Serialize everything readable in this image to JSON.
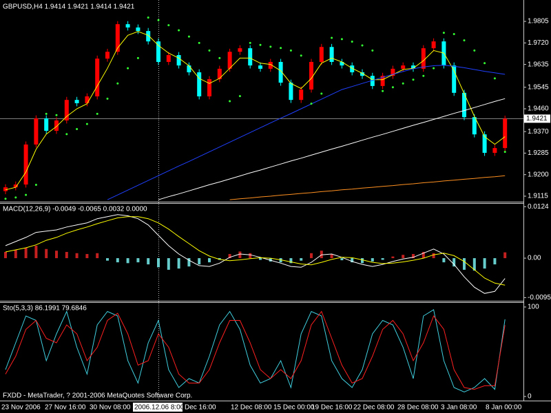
{
  "chart_data": [
    {
      "type": "candlestick",
      "title": "GBPUSD,H4  1.9414 1.9421 1.9414 1.9421",
      "ylim": [
        1.9096,
        1.9884
      ],
      "yticks": [
        1.9805,
        {
          "value": 1.972,
          "label": "1.9720"
        },
        1.9635,
        1.9545,
        {
          "value": 1.946,
          "label": "1.9460"
        },
        {
          "value": 1.937,
          "label": "1.9370"
        },
        1.9285,
        {
          "value": 1.92,
          "label": "1.9200"
        },
        1.9115
      ],
      "up_color": "#ff0000",
      "down_color": "#00ffff",
      "price_line": {
        "value": 1.9421,
        "label": "1.9421"
      },
      "open": [
        1.9135,
        1.915,
        1.9161,
        1.9319,
        1.9422,
        1.9373,
        1.9414,
        1.9495,
        1.9482,
        1.9509,
        1.9658,
        1.9685,
        1.9794,
        1.9781,
        1.9767,
        1.9726,
        1.9645,
        1.9672,
        1.9631,
        1.9604,
        1.9509,
        1.9577,
        1.9618,
        1.9685,
        1.9699,
        1.9631,
        1.9618,
        1.9645,
        1.9563,
        1.9495,
        1.9536,
        1.9645,
        1.9704,
        1.9645,
        1.9631,
        1.9604,
        1.959,
        1.955,
        1.959,
        1.9618,
        1.9631,
        1.9618,
        1.9699,
        1.9726,
        1.9631,
        1.9523,
        1.9427,
        1.9359,
        1.9286,
        1.9305
      ],
      "high": [
        1.9162,
        1.9173,
        1.9331,
        1.9434,
        1.9434,
        1.9426,
        1.9507,
        1.9507,
        1.9521,
        1.967,
        1.9697,
        1.9806,
        1.9806,
        1.9793,
        1.9779,
        1.9738,
        1.9684,
        1.9684,
        1.9643,
        1.9616,
        1.9589,
        1.963,
        1.9697,
        1.9711,
        1.9711,
        1.9643,
        1.9657,
        1.9657,
        1.9575,
        1.9548,
        1.9657,
        1.9716,
        1.9716,
        1.9657,
        1.9643,
        1.9616,
        1.9602,
        1.9602,
        1.963,
        1.9643,
        1.9643,
        1.9711,
        1.9738,
        1.9738,
        1.9643,
        1.9535,
        1.9439,
        1.9371,
        1.9317,
        1.9433
      ],
      "low": [
        1.9123,
        1.9138,
        1.9149,
        1.9307,
        1.9361,
        1.9361,
        1.9402,
        1.947,
        1.947,
        1.9497,
        1.9646,
        1.9673,
        1.9769,
        1.9755,
        1.9714,
        1.9633,
        1.9633,
        1.9619,
        1.9592,
        1.9497,
        1.9497,
        1.9565,
        1.9606,
        1.9673,
        1.9619,
        1.9606,
        1.9606,
        1.9551,
        1.9483,
        1.9483,
        1.9524,
        1.9633,
        1.9633,
        1.9619,
        1.9592,
        1.9578,
        1.9538,
        1.9538,
        1.9578,
        1.9606,
        1.9606,
        1.9606,
        1.9687,
        1.9619,
        1.9511,
        1.9415,
        1.9347,
        1.9274,
        1.9274,
        1.9293
      ],
      "close": [
        1.915,
        1.9161,
        1.9319,
        1.9422,
        1.9373,
        1.9414,
        1.9495,
        1.9482,
        1.9509,
        1.9658,
        1.9685,
        1.9794,
        1.9781,
        1.9767,
        1.9726,
        1.9645,
        1.9672,
        1.9631,
        1.9604,
        1.9509,
        1.9577,
        1.9618,
        1.9685,
        1.9699,
        1.9631,
        1.9618,
        1.9645,
        1.9563,
        1.9495,
        1.9536,
        1.9645,
        1.9704,
        1.9645,
        1.9631,
        1.9604,
        1.959,
        1.955,
        1.959,
        1.9618,
        1.9631,
        1.9618,
        1.9699,
        1.9726,
        1.9631,
        1.9523,
        1.9427,
        1.9359,
        1.9286,
        1.9305,
        1.9421
      ],
      "series": [
        {
          "type": "line",
          "color": "#ffff00",
          "values": [
            1.914,
            1.915,
            1.921,
            1.93,
            1.936,
            1.939,
            1.943,
            1.946,
            1.948,
            1.955,
            1.962,
            1.97,
            1.975,
            1.9765,
            1.975,
            1.971,
            1.968,
            1.966,
            1.963,
            1.958,
            1.956,
            1.958,
            1.962,
            1.966,
            1.966,
            1.964,
            1.9635,
            1.961,
            1.956,
            1.954,
            1.958,
            1.964,
            1.966,
            1.9645,
            1.962,
            1.96,
            1.9575,
            1.9575,
            1.9595,
            1.9615,
            1.962,
            1.965,
            1.969,
            1.968,
            1.961,
            1.952,
            1.943,
            1.935,
            1.932,
            1.935
          ]
        },
        {
          "type": "line",
          "color": "#2040ff",
          "values": [
            null,
            null,
            null,
            null,
            null,
            null,
            null,
            null,
            null,
            null,
            1.9101,
            1.912,
            1.9139,
            1.9158,
            1.9177,
            1.9196,
            1.9215,
            1.9234,
            1.9252,
            1.9271,
            1.929,
            1.9309,
            1.9328,
            1.9347,
            1.9366,
            1.9385,
            1.9404,
            1.9423,
            1.9441,
            1.946,
            1.9479,
            1.9498,
            1.9517,
            1.9536,
            1.9548,
            1.956,
            1.9572,
            1.9584,
            1.9596,
            1.9607,
            1.9618,
            1.9625,
            1.963,
            1.9632,
            1.9628,
            1.9622,
            1.9615,
            1.9608,
            1.9602,
            1.9596
          ]
        },
        {
          "type": "line",
          "color": "#ffffff",
          "values": [
            null,
            null,
            null,
            null,
            null,
            null,
            null,
            null,
            null,
            null,
            null,
            null,
            null,
            null,
            null,
            1.9101,
            1.9113,
            1.9124,
            1.9136,
            1.9148,
            1.916,
            1.9171,
            1.9183,
            1.9195,
            1.9207,
            1.9218,
            1.923,
            1.9242,
            1.9254,
            1.9265,
            1.9277,
            1.9289,
            1.9301,
            1.9312,
            1.9324,
            1.9336,
            1.9348,
            1.9359,
            1.9371,
            1.9383,
            1.9395,
            1.9406,
            1.9418,
            1.943,
            1.9442,
            1.9453,
            1.9465,
            1.9477,
            1.9489,
            1.95
          ]
        },
        {
          "type": "line",
          "color": "#ff9020",
          "values": [
            null,
            null,
            null,
            null,
            null,
            null,
            null,
            null,
            null,
            null,
            null,
            null,
            null,
            null,
            null,
            null,
            null,
            null,
            null,
            null,
            null,
            null,
            1.9101,
            1.9105,
            1.9108,
            1.9112,
            1.9115,
            1.9119,
            1.9122,
            1.9126,
            1.9129,
            1.9133,
            1.9136,
            1.914,
            1.9143,
            1.9147,
            1.915,
            1.9154,
            1.9157,
            1.9161,
            1.9164,
            1.9168,
            1.9171,
            1.9175,
            1.9178,
            1.9182,
            1.9185,
            1.9189,
            1.9192,
            1.9196
          ]
        },
        {
          "type": "dots",
          "color": "#33ff33",
          "values": [
            1.9105,
            1.911,
            1.912,
            1.916,
            1.944,
            1.9435,
            1.936,
            1.938,
            1.94,
            1.944,
            1.95,
            1.956,
            1.962,
            1.966,
            1.982,
            1.981,
            1.979,
            1.977,
            1.9745,
            1.972,
            1.969,
            1.966,
            1.949,
            1.951,
            1.972,
            1.9712,
            1.9705,
            1.97,
            1.969,
            1.967,
            1.948,
            1.952,
            1.974,
            1.9735,
            1.9725,
            1.971,
            1.969,
            1.953,
            1.9545,
            1.956,
            1.9575,
            1.959,
            1.962,
            1.976,
            1.9755,
            1.973,
            1.969,
            1.964,
            1.958,
            1.929
          ]
        }
      ]
    },
    {
      "type": "bar",
      "title": "MACD(12,26,9) -0.0049 -0.0065 0.0032 0.0000",
      "ylim": [
        -0.0101,
        0.0131
      ],
      "yticks": [
        0.0124,
        {
          "value": 0,
          "label": "0.00"
        },
        -0.0095
      ],
      "series": [
        {
          "type": "bar",
          "positive_color": "#c42020",
          "negative_color": "#66cccc",
          "values": [
            0.0015,
            0.002,
            0.0025,
            0.003,
            0.0022,
            0.0018,
            0.0015,
            0.0012,
            0.001,
            0.0012,
            -0.0006,
            -0.001,
            -0.0012,
            -0.001,
            -0.0015,
            -0.0022,
            -0.0028,
            -0.0025,
            -0.002,
            -0.0015,
            -0.001,
            -0.0004,
            0.001,
            0.0016,
            0.0012,
            -0.0004,
            -0.0008,
            -0.001,
            -0.0012,
            -0.0006,
            0.0012,
            0.0018,
            0.001,
            -0.0005,
            -0.001,
            -0.0012,
            -0.0008,
            -0.0004,
            0.0004,
            0.0008,
            0.001,
            0.0015,
            0.0012,
            -0.001,
            -0.002,
            -0.0028,
            -0.003,
            -0.0025,
            -0.0015,
            0.0014
          ]
        },
        {
          "type": "line",
          "color": "#ffffff",
          "values": [
            0.003,
            0.004,
            0.005,
            0.0062,
            0.0065,
            0.0068,
            0.0075,
            0.008,
            0.0085,
            0.0095,
            0.01,
            0.0105,
            0.0102,
            0.0095,
            0.008,
            0.0055,
            0.003,
            0.001,
            -0.0005,
            -0.0018,
            -0.002,
            -0.0012,
            0.0002,
            0.001,
            0.0008,
            0.0002,
            -0.0005,
            -0.0012,
            -0.002,
            -0.0022,
            -0.001,
            0.0008,
            0.001,
            0.0002,
            -0.0008,
            -0.0015,
            -0.002,
            -0.0015,
            -0.0008,
            -0.0002,
            0.0002,
            0.0012,
            0.0022,
            0.001,
            -0.0015,
            -0.0045,
            -0.007,
            -0.0085,
            -0.008,
            -0.0049
          ]
        },
        {
          "type": "line",
          "color": "#ffff00",
          "values": [
            0.0015,
            0.002,
            0.0025,
            0.0032,
            0.0043,
            0.005,
            0.006,
            0.0068,
            0.0075,
            0.0083,
            0.009,
            0.0097,
            0.01,
            0.01,
            0.0095,
            0.0085,
            0.007,
            0.0052,
            0.0035,
            0.0018,
            0.0005,
            -0.0003,
            -0.0006,
            -0.0004,
            -0.0001,
            0.0001,
            0.0,
            -0.0004,
            -0.0009,
            -0.0014,
            -0.0016,
            -0.001,
            -0.0003,
            0.0002,
            0.0001,
            -0.0004,
            -0.001,
            -0.0013,
            -0.0012,
            -0.0009,
            -0.0005,
            0.0,
            0.0008,
            0.0012,
            0.0006,
            -0.0008,
            -0.0028,
            -0.0048,
            -0.006,
            -0.0065
          ]
        }
      ]
    },
    {
      "type": "line",
      "title": "Sto(5,3,3) 86.1991 79.6846",
      "ylim": [
        -4.6,
        104.6
      ],
      "yticks": [
        100,
        0
      ],
      "series": [
        {
          "type": "line",
          "color": "#40d0e0",
          "values": [
            30,
            60,
            90,
            85,
            40,
            70,
            95,
            55,
            25,
            80,
            95,
            90,
            40,
            15,
            60,
            85,
            30,
            10,
            20,
            15,
            45,
            80,
            95,
            75,
            35,
            15,
            20,
            40,
            10,
            70,
            95,
            90,
            40,
            20,
            10,
            30,
            70,
            85,
            80,
            55,
            20,
            90,
            97,
            40,
            10,
            5,
            10,
            20,
            8,
            86.1991
          ]
        },
        {
          "type": "line",
          "color": "#ff2020",
          "values": [
            25,
            45,
            75,
            85,
            65,
            60,
            80,
            70,
            40,
            55,
            85,
            93,
            70,
            35,
            40,
            70,
            55,
            25,
            15,
            15,
            30,
            60,
            85,
            85,
            60,
            30,
            20,
            30,
            20,
            40,
            80,
            95,
            65,
            35,
            15,
            20,
            45,
            75,
            85,
            70,
            40,
            60,
            90,
            75,
            30,
            10,
            8,
            12,
            12,
            79.6846
          ]
        }
      ],
      "annotation": "FXDD - MetaTrader, ? 2001-2006 MetaQuotes Software Corp.",
      "x_labels": [
        "23 Nov 2006",
        "27 Nov 16:00",
        "30 Nov 08:00",
        "Dec 16:00",
        "12 Dec 08:00",
        "15 Dec 00:00",
        "19 Dec 16:00",
        "22 Dec 08:00",
        "28 Dec 08:00",
        "3 Jan 08:00",
        "8 Jan 00:00"
      ],
      "crosshair_label": "2006.12.06 8:00"
    }
  ]
}
